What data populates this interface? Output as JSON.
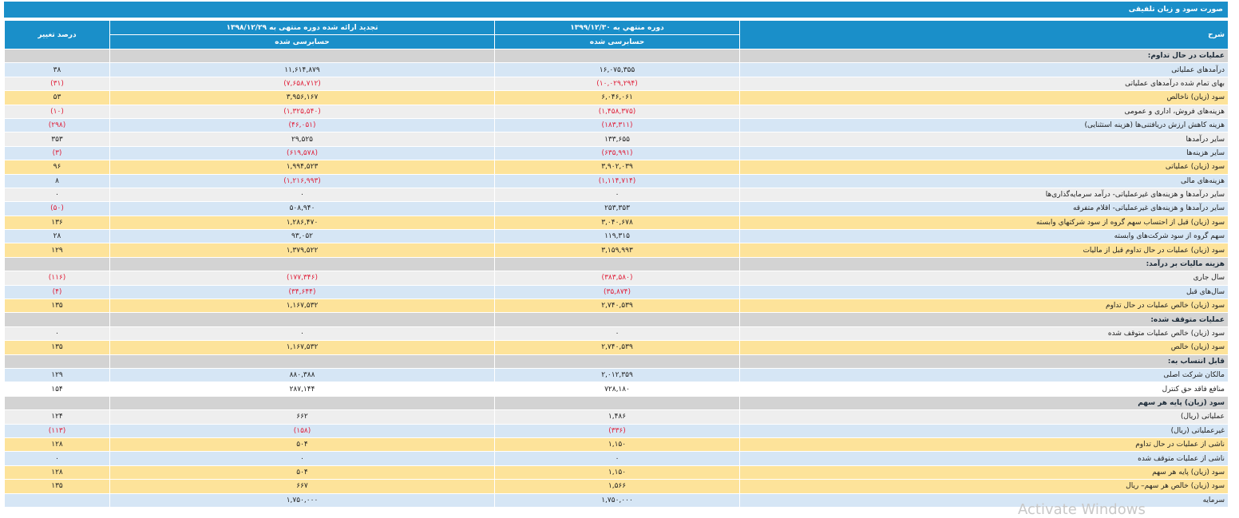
{
  "title": "صورت سود و زیان تلفیقی",
  "headers": {
    "desc": "شرح",
    "period_current": "دوره منتهي به ۱۳۹۹/۱۲/۳۰",
    "period_current_status": "حسابرسی شده",
    "period_prior": "تجدید ارائه شده دوره منتهی به ۱۳۹۸/۱۲/۲۹",
    "period_prior_status": "حسابرسی شده",
    "change": "درصد تغییر"
  },
  "rows": [
    {
      "kind": "section",
      "desc": "عملیات در حال تداوم:",
      "cur": "",
      "prior": "",
      "pct": ""
    },
    {
      "kind": "blue",
      "desc": "درآمدهای عملیاتی",
      "cur": "۱۶,۰۷۵,۳۵۵",
      "prior": "۱۱,۶۱۴,۸۷۹",
      "pct": "۳۸"
    },
    {
      "kind": "gray",
      "desc": "بهاى تمام شده درآمدهای عملیاتی",
      "cur": "(۱۰,۰۲۹,۲۹۴)",
      "prior": "(۷,۶۵۸,۷۱۲)",
      "pct": "(۳۱)"
    },
    {
      "kind": "gold",
      "desc": "سود (زیان) ناخالص",
      "cur": "۶,۰۴۶,۰۶۱",
      "prior": "۳,۹۵۶,۱۶۷",
      "pct": "۵۳"
    },
    {
      "kind": "gray",
      "desc": "هزینه‌های فروش، اداری و عمومی",
      "cur": "(۱,۴۵۸,۳۷۵)",
      "prior": "(۱,۳۲۵,۵۴۰)",
      "pct": "(۱۰)"
    },
    {
      "kind": "blue",
      "desc": "هزینه کاهش ارزش دریافتنی‌ها (هزینه استثنایی)",
      "cur": "(۱۸۳,۳۱۱)",
      "prior": "(۴۶,۰۵۱)",
      "pct": "(۲۹۸)"
    },
    {
      "kind": "gray",
      "desc": "سایر درآمدها",
      "cur": "۱۳۳,۶۵۵",
      "prior": "۲۹,۵۲۵",
      "pct": "۳۵۳"
    },
    {
      "kind": "blue",
      "desc": "سایر هزینه‌ها",
      "cur": "(۶۳۵,۹۹۱)",
      "prior": "(۶۱۹,۵۷۸)",
      "pct": "(۳)"
    },
    {
      "kind": "gold",
      "desc": "سود (زیان) عملیاتی",
      "cur": "۳,۹۰۲,۰۳۹",
      "prior": "۱,۹۹۴,۵۲۳",
      "pct": "۹۶"
    },
    {
      "kind": "blue",
      "desc": "هزینه‌های مالی",
      "cur": "(۱,۱۱۴,۷۱۴)",
      "prior": "(۱,۲۱۶,۹۹۳)",
      "pct": "۸"
    },
    {
      "kind": "gray",
      "desc": "سایر درآمدها و هزینه‌های غیرعملیاتی- درآمد سرمایه‌گذاری‌ها",
      "cur": "۰",
      "prior": "۰",
      "pct": "۰"
    },
    {
      "kind": "blue",
      "desc": "سایر درآمدها و هزینه‌های غیرعملیاتی- اقلام متفرقه",
      "cur": "۲۵۳,۳۵۳",
      "prior": "۵۰۸,۹۴۰",
      "pct": "(۵۰)"
    },
    {
      "kind": "gold",
      "desc": "سود (زیان) قبل از احتساب سهم گروه از سود شرکتهاي وابسته",
      "cur": "۳,۰۴۰,۶۷۸",
      "prior": "۱,۲۸۶,۴۷۰",
      "pct": "۱۳۶"
    },
    {
      "kind": "blue",
      "desc": "سهم گروه از سود شرکت‌های وابسته",
      "cur": "۱۱۹,۳۱۵",
      "prior": "۹۳,۰۵۲",
      "pct": "۲۸"
    },
    {
      "kind": "gold",
      "desc": "سود (زیان) عملیات در حال تداوم قبل از مالیات",
      "cur": "۳,۱۵۹,۹۹۳",
      "prior": "۱,۳۷۹,۵۲۲",
      "pct": "۱۲۹"
    },
    {
      "kind": "section",
      "desc": "هزینه مالیات بر درآمد:",
      "cur": "",
      "prior": "",
      "pct": ""
    },
    {
      "kind": "gray",
      "desc": "سال جاری",
      "cur": "(۳۸۳,۵۸۰)",
      "prior": "(۱۷۷,۳۴۶)",
      "pct": "(۱۱۶)"
    },
    {
      "kind": "blue",
      "desc": "سال‌های قبل",
      "cur": "(۳۵,۸۷۴)",
      "prior": "(۳۴,۶۴۴)",
      "pct": "(۴)"
    },
    {
      "kind": "gold",
      "desc": "سود (زیان) خالص عملیات در حال تداوم",
      "cur": "۲,۷۴۰,۵۳۹",
      "prior": "۱,۱۶۷,۵۳۲",
      "pct": "۱۳۵"
    },
    {
      "kind": "section",
      "desc": "عملیات متوقف شده:",
      "cur": "",
      "prior": "",
      "pct": ""
    },
    {
      "kind": "gray",
      "desc": "سود (زیان) خالص عملیات متوقف شده",
      "cur": "۰",
      "prior": "۰",
      "pct": "۰"
    },
    {
      "kind": "gold",
      "desc": "سود (زیان) خالص",
      "cur": "۲,۷۴۰,۵۳۹",
      "prior": "۱,۱۶۷,۵۳۲",
      "pct": "۱۳۵"
    },
    {
      "kind": "section",
      "desc": "قابل انتساب به:",
      "cur": "",
      "prior": "",
      "pct": ""
    },
    {
      "kind": "blue",
      "desc": "مالکان شرکت اصلی",
      "cur": "۲,۰۱۲,۳۵۹",
      "prior": "۸۸۰,۳۸۸",
      "pct": "۱۲۹"
    },
    {
      "kind": "white",
      "desc": "منافع فاقد حق کنترل",
      "cur": "۷۲۸,۱۸۰",
      "prior": "۲۸۷,۱۴۴",
      "pct": "۱۵۴"
    },
    {
      "kind": "section",
      "desc": "سود (زیان) پایه هر سهم",
      "cur": "",
      "prior": "",
      "pct": ""
    },
    {
      "kind": "gray",
      "desc": "عملیاتی (ریال)",
      "cur": "۱,۴۸۶",
      "prior": "۶۶۲",
      "pct": "۱۲۴"
    },
    {
      "kind": "blue",
      "desc": "غیرعملیاتی (ریال)",
      "cur": "(۳۳۶)",
      "prior": "(۱۵۸)",
      "pct": "(۱۱۳)"
    },
    {
      "kind": "gold",
      "desc": "ناشی از عملیات در حال تداوم",
      "cur": "۱,۱۵۰",
      "prior": "۵۰۴",
      "pct": "۱۲۸"
    },
    {
      "kind": "blue",
      "desc": "ناشی از عملیات متوقف شده",
      "cur": "۰",
      "prior": "۰",
      "pct": "۰"
    },
    {
      "kind": "gold",
      "desc": "سود (زیان) پایه هر سهم",
      "cur": "۱,۱۵۰",
      "prior": "۵۰۴",
      "pct": "۱۲۸"
    },
    {
      "kind": "gold",
      "desc": "سود (زیان) خالص هر سهم– ریال",
      "cur": "۱,۵۶۶",
      "prior": "۶۶۷",
      "pct": "۱۳۵"
    },
    {
      "kind": "blue",
      "desc": "سرمایه",
      "cur": "۱,۷۵۰,۰۰۰",
      "prior": "۱,۷۵۰,۰۰۰",
      "pct": ""
    }
  ],
  "watermark": "Activate Windows"
}
